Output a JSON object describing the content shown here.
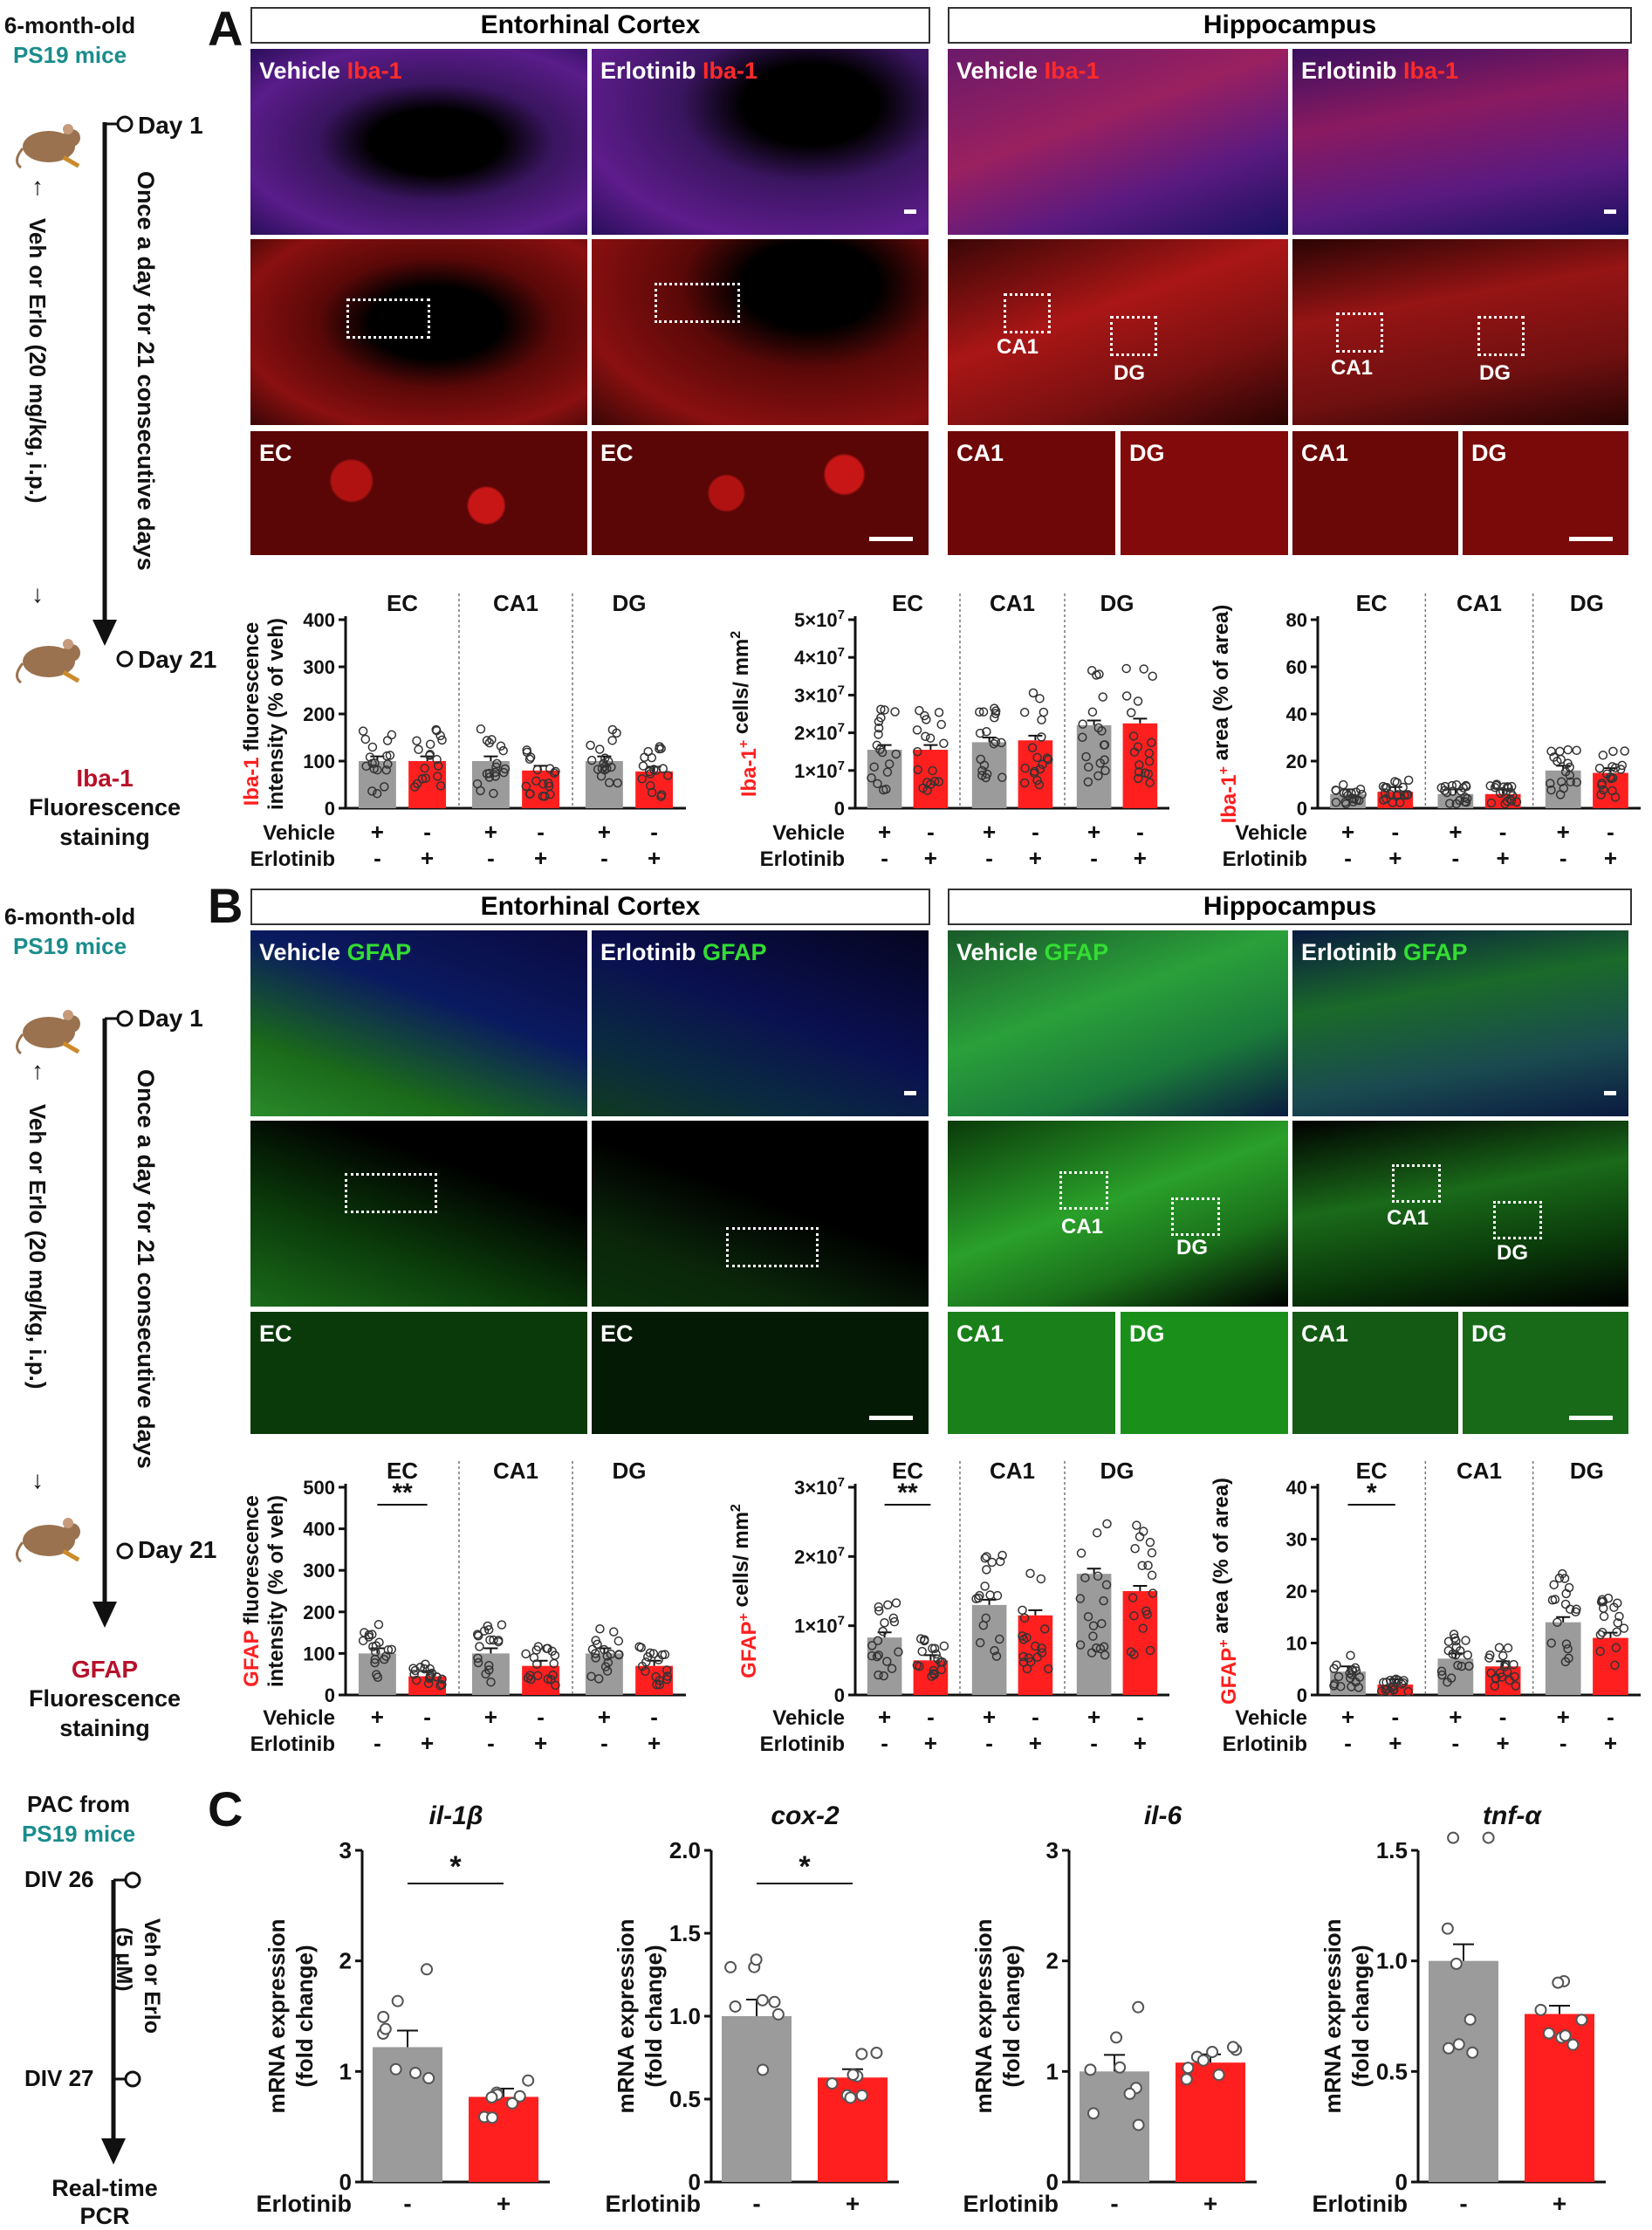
{
  "panels": {
    "a": "A",
    "b": "B",
    "c": "C"
  },
  "left_timeline": {
    "a": {
      "title1": "6-month-old",
      "title2": "PS19 mice",
      "day1": "Day 1",
      "day21": "Day 21",
      "treatment": "Veh or Erlo (20 mg/kg, i.p.)",
      "schedule": "Once a day for 21 consecutive days",
      "readout1": "Iba-1",
      "readout2": "Fluorescence",
      "readout3": "staining"
    },
    "b": {
      "title1": "6-month-old",
      "title2": "PS19 mice",
      "day1": "Day 1",
      "day21": "Day 21",
      "treatment": "Veh or Erlo (20 mg/kg, i.p.)",
      "schedule": "Once a day for 21 consecutive days",
      "readout1": "GFAP",
      "readout2": "Fluorescence",
      "readout3": "staining"
    },
    "c": {
      "title1": "PAC from",
      "title2": "PS19 mice",
      "div26": "DIV 26",
      "div27": "DIV 27",
      "treatment1": "Veh or Erlo",
      "treatment2": "(5 μM)",
      "readout1": "Real-time",
      "readout2": "PCR"
    }
  },
  "region_headers": {
    "ec": "Entorhinal Cortex",
    "hc": "Hippocampus"
  },
  "image_labels": {
    "vehicle": "Vehicle",
    "erlotinib": "Erlotinib",
    "iba1": "Iba-1",
    "gfap": "GFAP",
    "ec": "EC",
    "ca1": "CA1",
    "dg": "DG"
  },
  "bar_axis_labels": {
    "vehicle": "Vehicle",
    "erlotinib": "Erlotinib",
    "plus": "+",
    "minus": "-",
    "ec": "EC",
    "ca1": "CA1",
    "dg": "DG",
    "a1_y_red": "Iba-1",
    "a1_y_black": " fluorescence",
    "a1_y2": "intensity (% of veh)",
    "a2_y_red": "Iba-1",
    "a2_y_sup": "+",
    "a2_y_black": " cells/ mm",
    "a2_y_sup2": "2",
    "a3_y_red": "Iba-1",
    "a3_y_sup": "+",
    "a3_y_black": " area (% of area)",
    "b1_y_red": "GFAP",
    "b1_y_black": " fluorescence",
    "b1_y2": "intensity (% of veh)",
    "b2_y_red": "GFAP",
    "b2_y_sup": "+",
    "b2_y_black": " cells/ mm",
    "b2_y_sup2": "2",
    "b3_y_red": "GFAP",
    "b3_y_sup": "+",
    "b3_y_black": " area (% of area)",
    "c_y1": "mRNA expression",
    "c_y2": "(fold change)",
    "c_x": "Erlotinib",
    "sig2": "**",
    "sig1": "*"
  },
  "colors": {
    "vehicle": "#9b9b9b",
    "erlotinib": "#ff1f1f",
    "iba1": "#ff2a2a",
    "gfap": "#33dd33",
    "dapi": "#2233cc"
  },
  "chart_data": [
    {
      "id": "A1",
      "type": "bar",
      "ylabel": "Iba-1 fluorescence intensity (% of veh)",
      "ylim": [
        0,
        400
      ],
      "yticks": [
        0,
        100,
        200,
        300,
        400
      ],
      "groups": [
        "EC",
        "CA1",
        "DG"
      ],
      "series": [
        {
          "name": "Vehicle",
          "values": [
            100,
            100,
            100
          ]
        },
        {
          "name": "Erlotinib",
          "values": [
            100,
            80,
            78
          ]
        }
      ]
    },
    {
      "id": "A2",
      "type": "bar",
      "ylabel": "Iba-1+ cells/ mm2",
      "ylim": [
        0,
        50000000
      ],
      "yticks": [
        0,
        10000000,
        20000000,
        30000000,
        40000000,
        50000000
      ],
      "ytick_labels": [
        "0",
        "1×10^7",
        "2×10^7",
        "3×10^7",
        "4×10^7",
        "5×10^7"
      ],
      "groups": [
        "EC",
        "CA1",
        "DG"
      ],
      "series": [
        {
          "name": "Vehicle",
          "values": [
            15500000,
            17500000,
            22000000
          ]
        },
        {
          "name": "Erlotinib",
          "values": [
            15500000,
            18000000,
            22500000
          ]
        }
      ]
    },
    {
      "id": "A3",
      "type": "bar",
      "ylabel": "Iba-1+ area (% of area)",
      "ylim": [
        0,
        80
      ],
      "yticks": [
        0,
        20,
        40,
        60,
        80
      ],
      "groups": [
        "EC",
        "CA1",
        "DG"
      ],
      "series": [
        {
          "name": "Vehicle",
          "values": [
            6,
            6,
            16
          ]
        },
        {
          "name": "Erlotinib",
          "values": [
            7,
            6,
            15
          ]
        }
      ]
    },
    {
      "id": "B1",
      "type": "bar",
      "ylabel": "GFAP fluorescence intensity (% of veh)",
      "ylim": [
        0,
        500
      ],
      "yticks": [
        0,
        100,
        200,
        300,
        400,
        500
      ],
      "groups": [
        "EC",
        "CA1",
        "DG"
      ],
      "series": [
        {
          "name": "Vehicle",
          "values": [
            100,
            100,
            100
          ]
        },
        {
          "name": "Erlotinib",
          "values": [
            45,
            70,
            70
          ]
        }
      ],
      "significance": [
        {
          "group": "EC",
          "label": "**"
        }
      ]
    },
    {
      "id": "B2",
      "type": "bar",
      "ylabel": "GFAP+ cells/ mm2",
      "ylim": [
        0,
        30000000
      ],
      "yticks": [
        0,
        10000000,
        20000000,
        30000000
      ],
      "ytick_labels": [
        "0",
        "1×10^7",
        "2×10^7",
        "3×10^7"
      ],
      "groups": [
        "EC",
        "CA1",
        "DG"
      ],
      "series": [
        {
          "name": "Vehicle",
          "values": [
            8300000,
            13000000,
            17500000
          ]
        },
        {
          "name": "Erlotinib",
          "values": [
            5000000,
            11500000,
            15000000
          ]
        }
      ],
      "significance": [
        {
          "group": "EC",
          "label": "**"
        }
      ]
    },
    {
      "id": "B3",
      "type": "bar",
      "ylabel": "GFAP+ area (% of area)",
      "ylim": [
        0,
        40
      ],
      "yticks": [
        0,
        10,
        20,
        30,
        40
      ],
      "groups": [
        "EC",
        "CA1",
        "DG"
      ],
      "series": [
        {
          "name": "Vehicle",
          "values": [
            4.5,
            7,
            14
          ]
        },
        {
          "name": "Erlotinib",
          "values": [
            2,
            5.5,
            11
          ]
        }
      ],
      "significance": [
        {
          "group": "EC",
          "label": "*"
        }
      ]
    },
    {
      "id": "C1",
      "type": "bar",
      "title": "il-1β",
      "ylabel": "mRNA expression (fold change)",
      "ylim": [
        0,
        3
      ],
      "yticks": [
        0,
        1,
        2,
        3
      ],
      "ytick_labels": [
        "0",
        "1",
        "2",
        "3"
      ],
      "categories": [
        "-",
        "+"
      ],
      "values": [
        1.22,
        0.77
      ],
      "significance": "*"
    },
    {
      "id": "C2",
      "type": "bar",
      "title": "cox-2",
      "ylabel": "mRNA expression (fold change)",
      "ylim": [
        0,
        2.0
      ],
      "yticks": [
        0,
        0.5,
        1.0,
        1.5,
        2.0
      ],
      "ytick_labels": [
        "0",
        "0.5",
        "1.0",
        "1.5",
        "2.0"
      ],
      "categories": [
        "-",
        "+"
      ],
      "values": [
        1.0,
        0.63
      ],
      "significance": "*"
    },
    {
      "id": "C3",
      "type": "bar",
      "title": "il-6",
      "ylabel": "mRNA expression (fold change)",
      "ylim": [
        0,
        3
      ],
      "yticks": [
        0,
        1,
        2,
        3
      ],
      "ytick_labels": [
        "0",
        "1",
        "2",
        "3"
      ],
      "categories": [
        "-",
        "+"
      ],
      "values": [
        1.0,
        1.08
      ]
    },
    {
      "id": "C4",
      "type": "bar",
      "title": "tnf-α",
      "ylabel": "mRNA expression (fold change)",
      "ylim": [
        0,
        1.5
      ],
      "yticks": [
        0,
        0.5,
        1.0,
        1.5
      ],
      "ytick_labels": [
        "0",
        "0.5",
        "1.0",
        "1.5"
      ],
      "categories": [
        "-",
        "+"
      ],
      "values": [
        1.0,
        0.76
      ]
    }
  ]
}
